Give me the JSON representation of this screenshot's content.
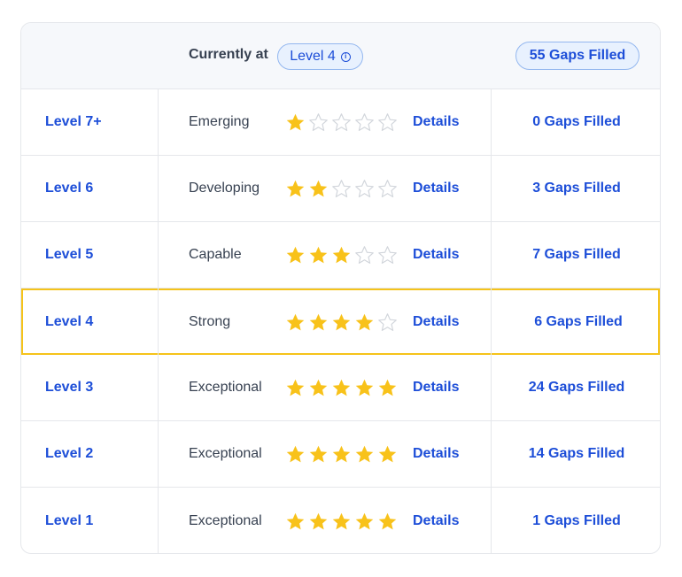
{
  "header": {
    "currently_label": "Currently at",
    "current_level": "Level 4",
    "total_gaps": "55 Gaps Filled"
  },
  "colors": {
    "accent": "#1d4ed8",
    "star_filled": "#f8c21a",
    "star_empty": "#d1d5db",
    "highlight_border": "#f5c31a"
  },
  "rows": [
    {
      "level": "Level 7+",
      "rating": "Emerging",
      "stars": 1,
      "details": "Details",
      "gaps": "0 Gaps Filled",
      "current": false
    },
    {
      "level": "Level 6",
      "rating": "Developing",
      "stars": 2,
      "details": "Details",
      "gaps": "3 Gaps Filled",
      "current": false
    },
    {
      "level": "Level 5",
      "rating": "Capable",
      "stars": 3,
      "details": "Details",
      "gaps": "7 Gaps Filled",
      "current": false
    },
    {
      "level": "Level 4",
      "rating": "Strong",
      "stars": 4,
      "details": "Details",
      "gaps": "6 Gaps Filled",
      "current": true
    },
    {
      "level": "Level 3",
      "rating": "Exceptional",
      "stars": 5,
      "details": "Details",
      "gaps": "24 Gaps Filled",
      "current": false
    },
    {
      "level": "Level 2",
      "rating": "Exceptional",
      "stars": 5,
      "details": "Details",
      "gaps": "14 Gaps Filled",
      "current": false
    },
    {
      "level": "Level 1",
      "rating": "Exceptional",
      "stars": 5,
      "details": "Details",
      "gaps": "1 Gaps Filled",
      "current": false
    }
  ]
}
